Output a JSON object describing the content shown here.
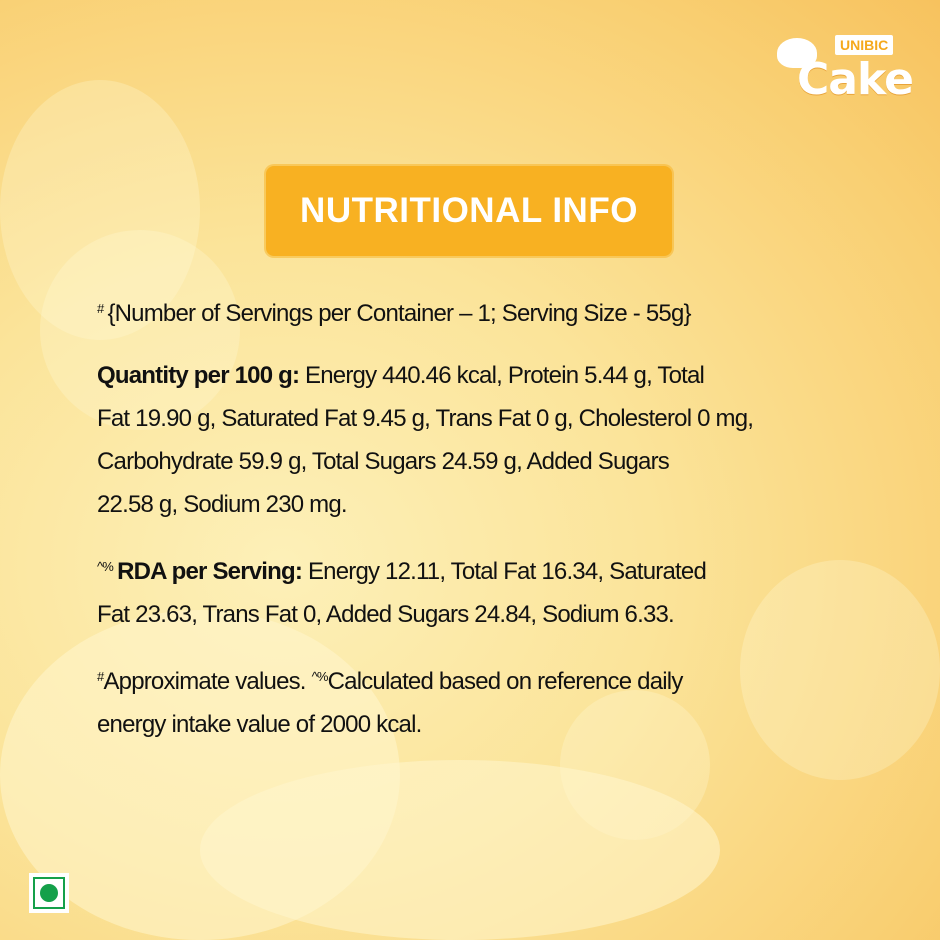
{
  "logo": {
    "brand": "UNIBIC",
    "product": "Cake"
  },
  "heading": "NUTRITIONAL INFO",
  "serving": {
    "mark": "#",
    "lines": [
      "{Number of Servings per Container – 1; Serving Size - 55g}"
    ]
  },
  "quantity": {
    "label": "Quantity per 100 g:",
    "lines": [
      " Energy 440.46 kcal, Protein 5.44 g, Total",
      "Fat 19.90 g, Saturated Fat 9.45 g, Trans Fat 0 g, Cholesterol 0 mg,",
      "Carbohydrate 59.9 g, Total Sugars 24.59 g, Added Sugars",
      "22.58 g, Sodium 230 mg."
    ]
  },
  "rda": {
    "mark": "^%",
    "label": "RDA per Serving:",
    "lines": [
      " Energy 12.11, Total Fat 16.34, Saturated",
      "Fat 23.63, Trans Fat 0, Added Sugars 24.84, Sodium 6.33."
    ]
  },
  "footnote": {
    "mark1": "#",
    "text1": "Approximate values. ",
    "mark2": "^%",
    "text2": "Calculated based on reference daily",
    "line2": "energy intake value of 2000 kcal."
  },
  "colors": {
    "badge": "#f8b122",
    "veg_mark": "#14a04a"
  },
  "icons": {
    "veg": "vegetarian-mark-icon"
  }
}
